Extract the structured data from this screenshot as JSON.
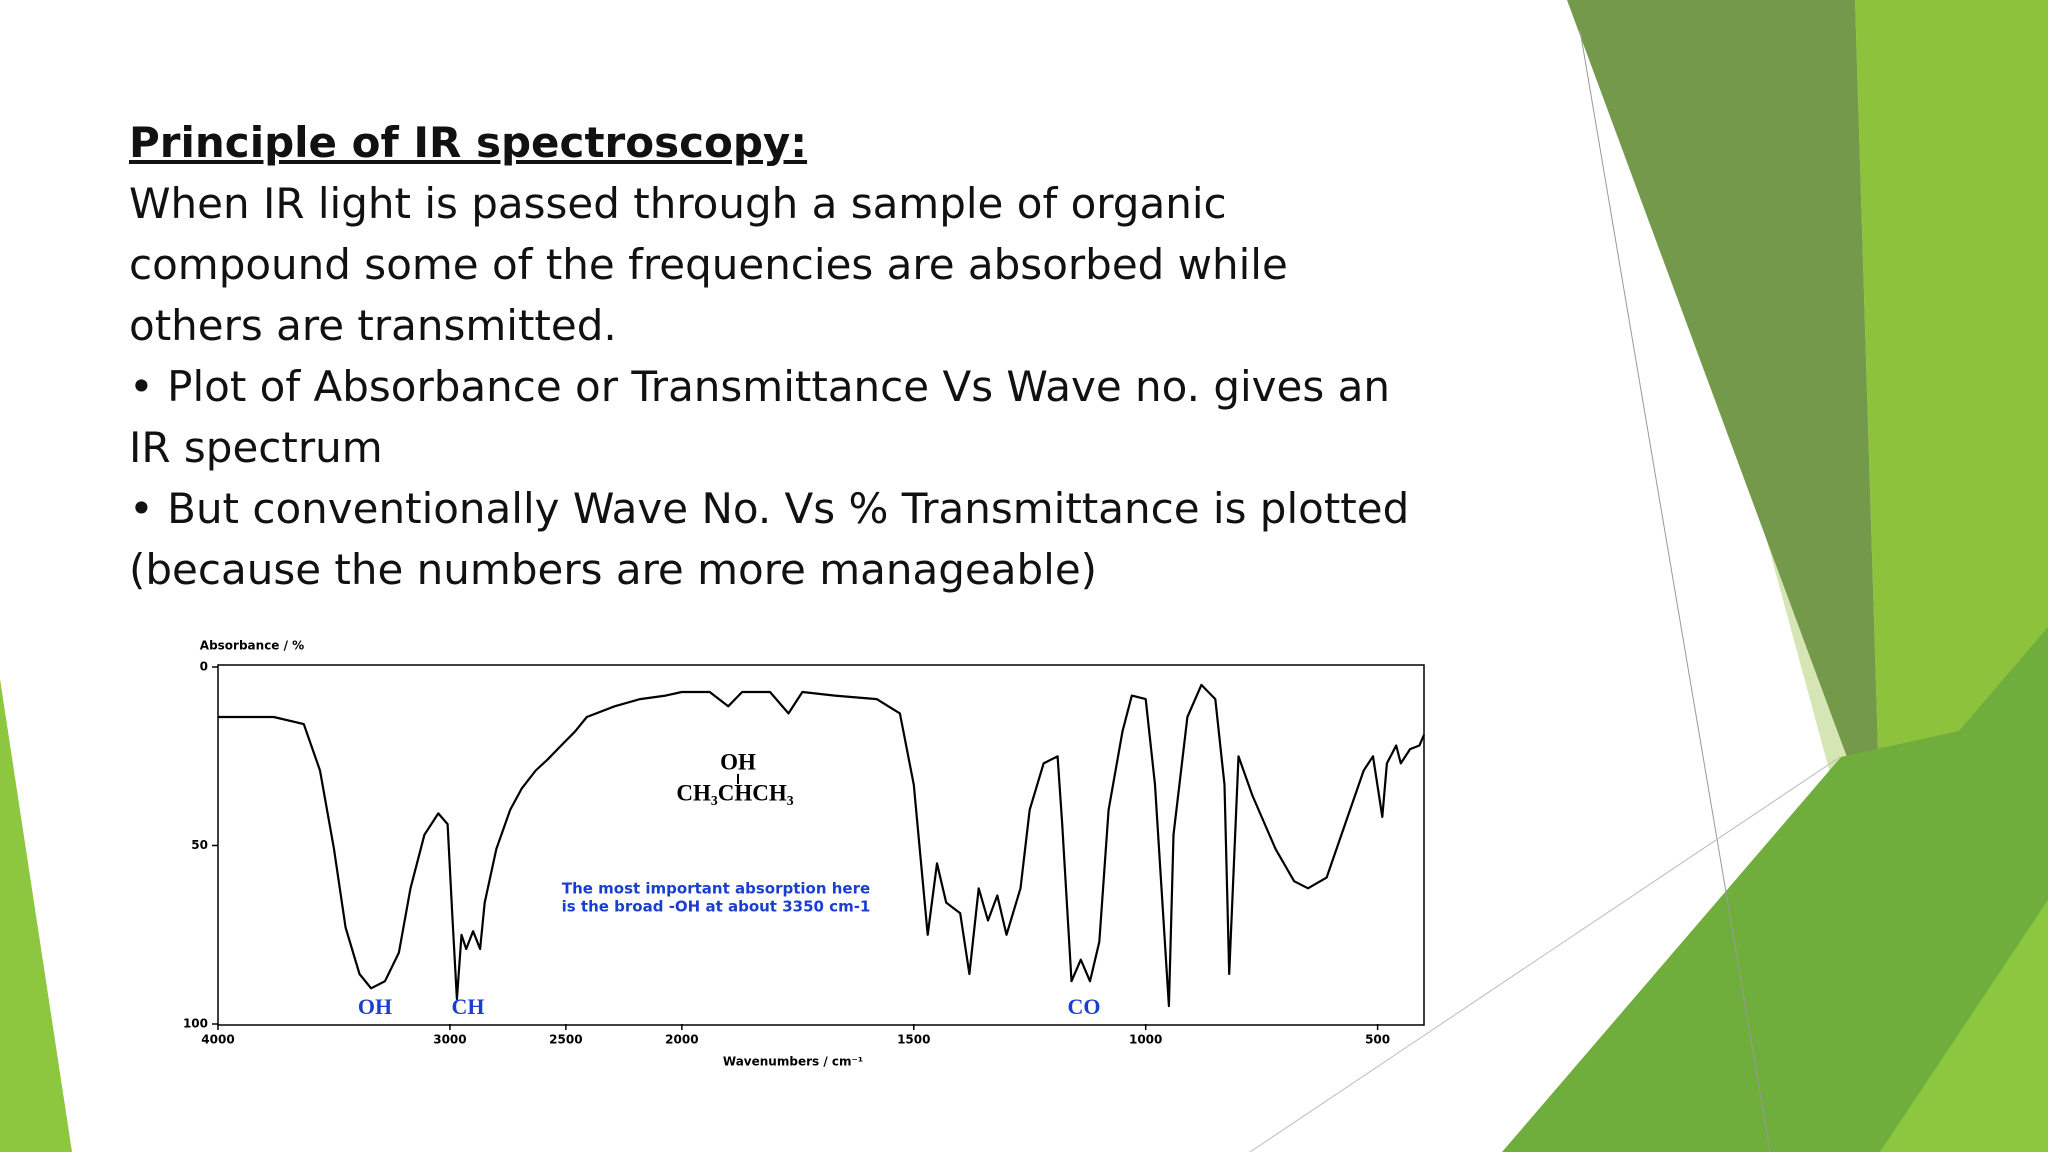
{
  "slide": {
    "title": "Principle of IR spectroscopy:",
    "lines": [
      "When IR light is passed through a sample of organic",
      "compound some of the frequencies are absorbed while",
      "others are transmitted.",
      "• Plot of Absorbance or Transmittance Vs Wave no. gives an",
      "IR spectrum",
      "• But conventionally Wave No. Vs % Transmittance is plotted",
      "(because the numbers are more manageable)"
    ]
  },
  "chart_data": {
    "type": "line",
    "ylabel": "Absorbance / %",
    "xlabel": "Wavenumbers / cm⁻¹",
    "xlim": [
      4000,
      400
    ],
    "x_scale_break": 2000,
    "xticks": [
      4000,
      3000,
      2500,
      2000,
      1500,
      1000,
      500
    ],
    "ylim": [
      0,
      100
    ],
    "yticks": [
      0,
      50,
      100
    ],
    "color": "#000000",
    "structure": [
      "OH",
      "CH₃CHCH₃"
    ],
    "note": [
      "The most important absorption here",
      "is the broad -OH at about 3350 cm-1"
    ],
    "peak_labels": [
      "OH",
      "CH",
      "CO"
    ],
    "x": [
      4000,
      3760,
      3630,
      3560,
      3500,
      3450,
      3390,
      3340,
      3280,
      3220,
      3170,
      3110,
      3050,
      3010,
      2990,
      2970,
      2950,
      2930,
      2900,
      2870,
      2850,
      2800,
      2740,
      2690,
      2630,
      2580,
      2520,
      2460,
      2410,
      2290,
      2180,
      2070,
      2000,
      1940,
      1900,
      1870,
      1810,
      1770,
      1740,
      1670,
      1580,
      1530,
      1500,
      1470,
      1450,
      1430,
      1400,
      1380,
      1360,
      1340,
      1320,
      1300,
      1270,
      1250,
      1220,
      1190,
      1180,
      1160,
      1140,
      1120,
      1100,
      1080,
      1050,
      1030,
      1000,
      980,
      950,
      940,
      910,
      880,
      850,
      830,
      820,
      800,
      770,
      720,
      680,
      650,
      610,
      570,
      530,
      510,
      490,
      480,
      460,
      450,
      430,
      410,
      400
    ],
    "values": [
      14,
      14,
      16,
      29,
      51,
      73,
      86,
      90,
      88,
      80,
      62,
      47,
      41,
      44,
      69,
      93,
      75,
      79,
      74,
      79,
      66,
      51,
      40,
      34,
      29,
      26,
      22,
      18,
      14,
      11,
      9,
      8,
      7,
      7,
      11,
      7,
      7,
      13,
      7,
      8,
      9,
      13,
      33,
      75,
      55,
      66,
      69,
      86,
      62,
      71,
      64,
      75,
      62,
      40,
      27,
      25,
      44,
      88,
      82,
      88,
      77,
      40,
      18,
      8,
      9,
      33,
      95,
      47,
      14,
      5,
      9,
      33,
      86,
      25,
      36,
      51,
      60,
      62,
      59,
      44,
      29,
      25,
      42,
      27,
      22,
      27,
      23,
      22,
      19
    ]
  }
}
